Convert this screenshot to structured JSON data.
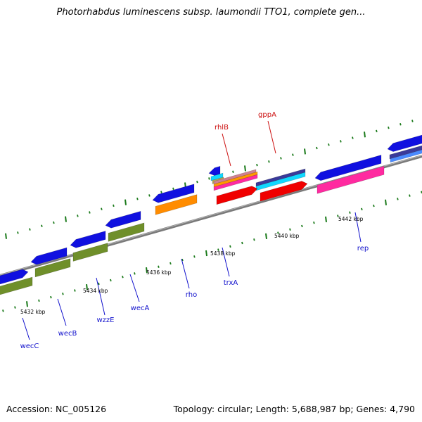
{
  "title": "Photorhabdus luminescens subsp. laumondii TTO1, complete gen...",
  "accession": "Accession: NC_005126",
  "genome_summary": "Topology: circular; Length: 5,688,987 bp; Genes: 4,790",
  "colors": {
    "backbone": "#888888",
    "tick": "#1a7a1a",
    "blue_gene": "#1010e0",
    "green_gene": "#6f8f2a",
    "orange_gene": "#ff8c00",
    "red_gene": "#f00000",
    "pink_gene": "#ff2aa0",
    "cyan_gene": "#10d8ff",
    "navy_gene": "#3a3a9a",
    "label_blue": "#1010cc",
    "label_red": "#cc1010"
  },
  "ticks": [
    {
      "label": "5432 kbp"
    },
    {
      "label": "5434 kbp"
    },
    {
      "label": "5436 kbp"
    },
    {
      "label": "5438 kbp"
    },
    {
      "label": "5440 kbp"
    },
    {
      "label": "5442 kbp"
    }
  ],
  "gene_labels": [
    {
      "name": "wecC",
      "color": "label_blue"
    },
    {
      "name": "wecB",
      "color": "label_blue"
    },
    {
      "name": "wzzE",
      "color": "label_blue"
    },
    {
      "name": "wecA",
      "color": "label_blue"
    },
    {
      "name": "rho",
      "color": "label_blue"
    },
    {
      "name": "trxA",
      "color": "label_blue"
    },
    {
      "name": "rep",
      "color": "label_blue"
    },
    {
      "name": "rhlB",
      "color": "label_red"
    },
    {
      "name": "gppA",
      "color": "label_red"
    }
  ]
}
